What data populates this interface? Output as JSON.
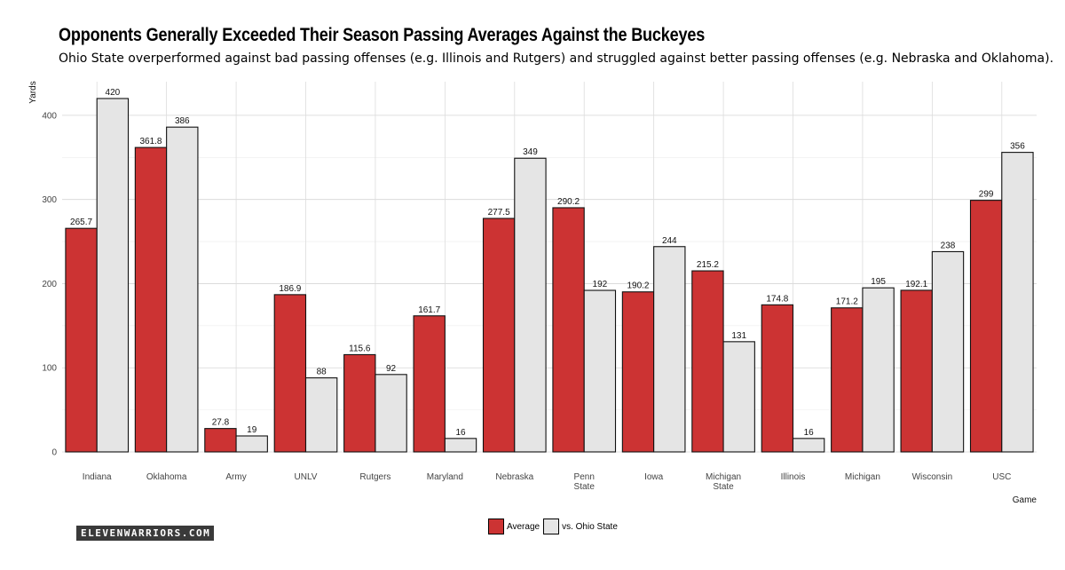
{
  "chart_data": {
    "type": "bar",
    "title": "Opponents Generally Exceeded Their Season Passing Averages Against the Buckeyes",
    "subtitle": "Ohio State overperformed against bad passing offenses (e.g. Illinois and Rutgers) and struggled against better passing offenses (e.g. Nebraska and Oklahoma).",
    "xlabel": "Game",
    "ylabel": "Yards",
    "ylim": [
      0,
      440
    ],
    "yticks": [
      0,
      100,
      200,
      300,
      400
    ],
    "grid": true,
    "legend_position": "bottom",
    "categories": [
      "Indiana",
      "Oklahoma",
      "Army",
      "UNLV",
      "Rutgers",
      "Maryland",
      "Nebraska",
      "Penn State",
      "Iowa",
      "Michigan State",
      "Illinois",
      "Michigan",
      "Wisconsin",
      "USC"
    ],
    "category_labels": [
      [
        "Indiana"
      ],
      [
        "Oklahoma"
      ],
      [
        "Army"
      ],
      [
        "UNLV"
      ],
      [
        "Rutgers"
      ],
      [
        "Maryland"
      ],
      [
        "Nebraska"
      ],
      [
        "Penn",
        "State"
      ],
      [
        "Iowa"
      ],
      [
        "Michigan",
        "State"
      ],
      [
        "Illinois"
      ],
      [
        "Michigan"
      ],
      [
        "Wisconsin"
      ],
      [
        "USC"
      ]
    ],
    "series": [
      {
        "name": "Average",
        "color": "#cc3333",
        "values": [
          265.7,
          361.8,
          27.8,
          186.9,
          115.6,
          161.7,
          277.5,
          290.2,
          190.2,
          215.2,
          174.8,
          171.2,
          192.1,
          299
        ],
        "labels": [
          "265.7",
          "361.8",
          "27.8",
          "186.9",
          "115.6",
          "161.7",
          "277.5",
          "290.2",
          "190.2",
          "215.2",
          "174.8",
          "171.2",
          "192.1",
          "299"
        ]
      },
      {
        "name": "vs. Ohio State",
        "color": "#e5e5e5",
        "values": [
          420,
          386,
          19,
          88,
          92,
          16,
          349,
          192,
          244,
          131,
          16,
          195,
          238,
          356
        ],
        "labels": [
          "420",
          "386",
          "19",
          "88",
          "92",
          "16",
          "349",
          "192",
          "244",
          "131",
          "16",
          "195",
          "238",
          "356"
        ]
      }
    ]
  },
  "branding": {
    "logo_text": "ELEVENWARRIORS.COM"
  }
}
